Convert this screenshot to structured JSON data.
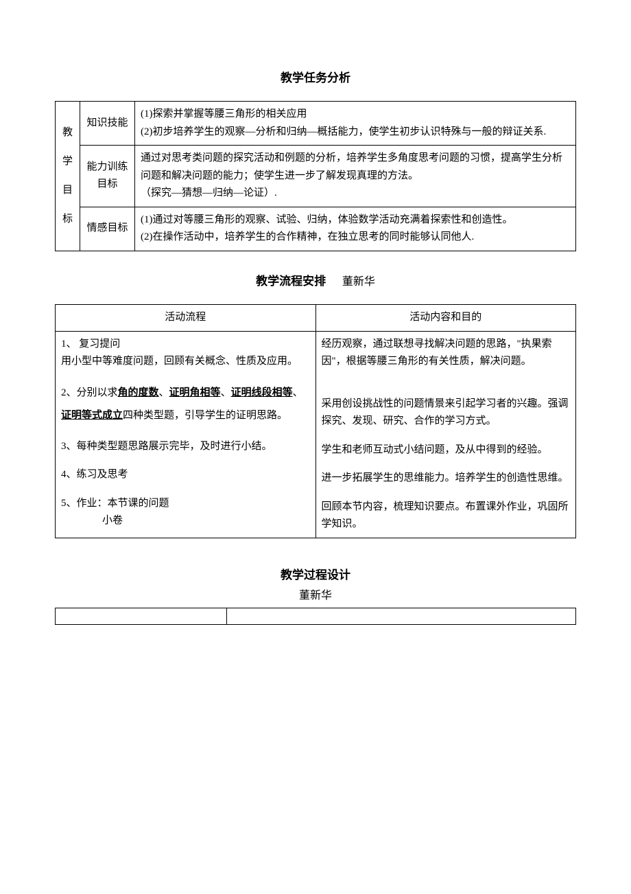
{
  "section1": {
    "title": "教学任务分析",
    "rowLabel": "教学目标",
    "rows": [
      {
        "label": "知识技能",
        "content": "(1)探索并掌握等腰三角形的相关应用\n(2)初步培养学生的观察—分析和归纳—概括能力，使学生初步认识特殊与一般的辩证关系."
      },
      {
        "label": "能力训练目标",
        "content": "通过对思考类问题的探究活动和例题的分析，培养学生多角度思考问题的习惯，提高学生分析问题和解决问题的能力；使学生进一步了解发现真理的方法。\n（探究—猜想—归纳—论证）."
      },
      {
        "label": "情感目标",
        "content": "(1)通过对等腰三角形的观察、试验、归纳，体验数学活动充满着探索性和创造性。\n(2)在操作活动中，培养学生的合作精神，在独立思考的同时能够认同他人."
      }
    ]
  },
  "section2": {
    "title": "教学流程安排",
    "author": "董新华",
    "headerLeft": "活动流程",
    "headerRight": "活动内容和目的",
    "item1Left": "1、 复习提问\n用小型中等难度问题，回顾有关概念、性质及应用。",
    "item1Right": "经历观察，通过联想寻找解决问题的思路，\"执果索因\"，根据等腰三角形的有关性质，解决问题。",
    "item2Prefix": "2、分别以求",
    "item2U1": "角的度数",
    "item2Sep1": "、",
    "item2U2": "证明角相等",
    "item2Sep2": "、",
    "item2U3": "证明线段相等",
    "item2Sep3": "、",
    "item2U4": "证明等式成立",
    "item2Suffix": "四种类型题，引导学生的证明思路。",
    "item2Right": "采用创设挑战性的问题情景来引起学习者的兴趣。强调探究、发现、研究、合作的学习方式。",
    "item3Left": "3、每种类型题思路展示完毕，及时进行小结。",
    "item3Right": "学生和老师互动式小结问题，及从中得到的经验。",
    "item4Left": "4、练习及思考",
    "item4Right": "进一步拓展学生的思维能力。培养学生的创造性思维。",
    "item5LeftLine1": "5、作业：本节课的问题",
    "item5LeftLine2": "小卷",
    "item5Right": "回顾本节内容，梳理知识要点。布置课外作业，巩固所学知识。"
  },
  "section3": {
    "title": "教学过程设计",
    "author": "董新华"
  }
}
